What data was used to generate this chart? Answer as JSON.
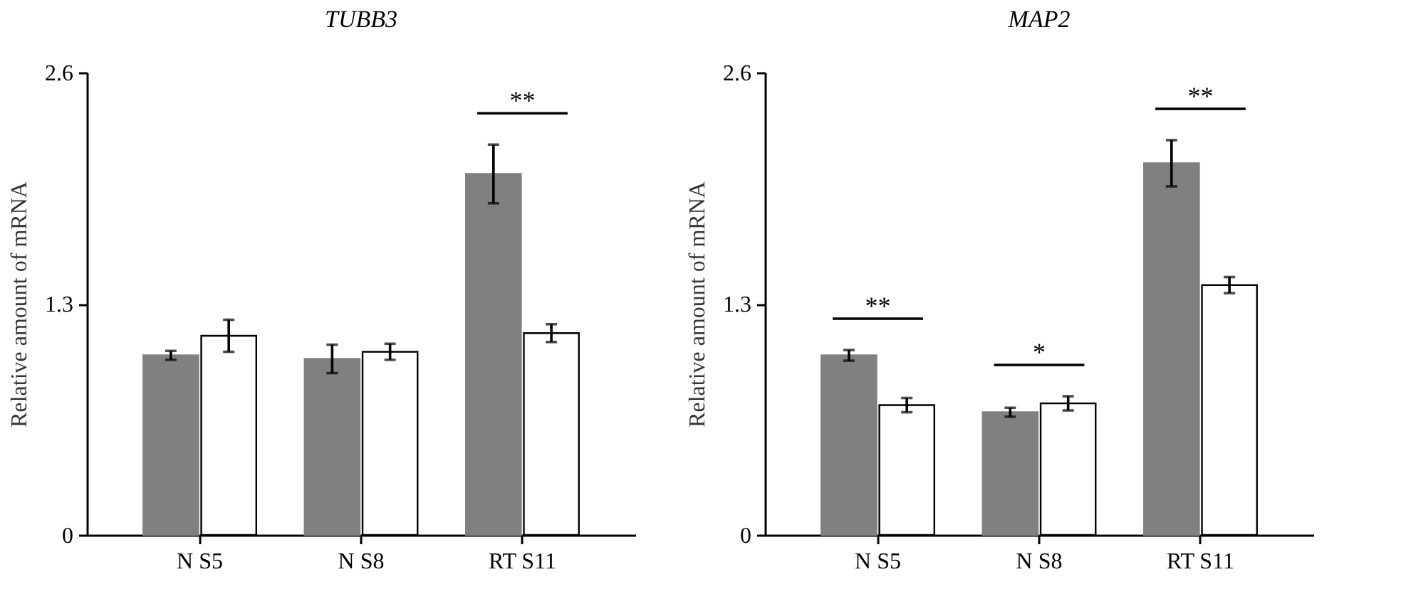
{
  "chart_data": [
    {
      "type": "bar",
      "title": "TUBB3",
      "ylabel": "Relative amount of mRNA",
      "categories": [
        "N S5",
        "N S8",
        "RT S11"
      ],
      "series": [
        {
          "color": "#808080",
          "values": [
            1.01,
            0.99,
            2.03
          ],
          "errors": [
            0.025,
            0.08,
            0.165
          ]
        },
        {
          "color": "#ffffff",
          "values": [
            1.12,
            1.03,
            1.135
          ],
          "errors": [
            0.09,
            0.045,
            0.05
          ]
        }
      ],
      "ylim": [
        0,
        2.6
      ],
      "yticks": [
        0,
        1.3,
        2.6
      ],
      "grid": false,
      "annotations": [
        "**"
      ]
    },
    {
      "type": "bar",
      "title": "MAP2",
      "ylabel": "Relative amount of mRNA",
      "categories": [
        "N S5",
        "N S8",
        "RT S11"
      ],
      "series": [
        {
          "color": "#808080",
          "values": [
            1.01,
            0.69,
            2.09
          ],
          "errors": [
            0.03,
            0.025,
            0.13
          ]
        },
        {
          "color": "#ffffff",
          "values": [
            0.73,
            0.74,
            1.405
          ],
          "errors": [
            0.04,
            0.04,
            0.045
          ]
        }
      ],
      "ylim": [
        0,
        2.6
      ],
      "yticks": [
        0,
        1.3,
        2.6
      ],
      "grid": false,
      "annotations": [
        "**",
        "*",
        "**"
      ]
    }
  ]
}
